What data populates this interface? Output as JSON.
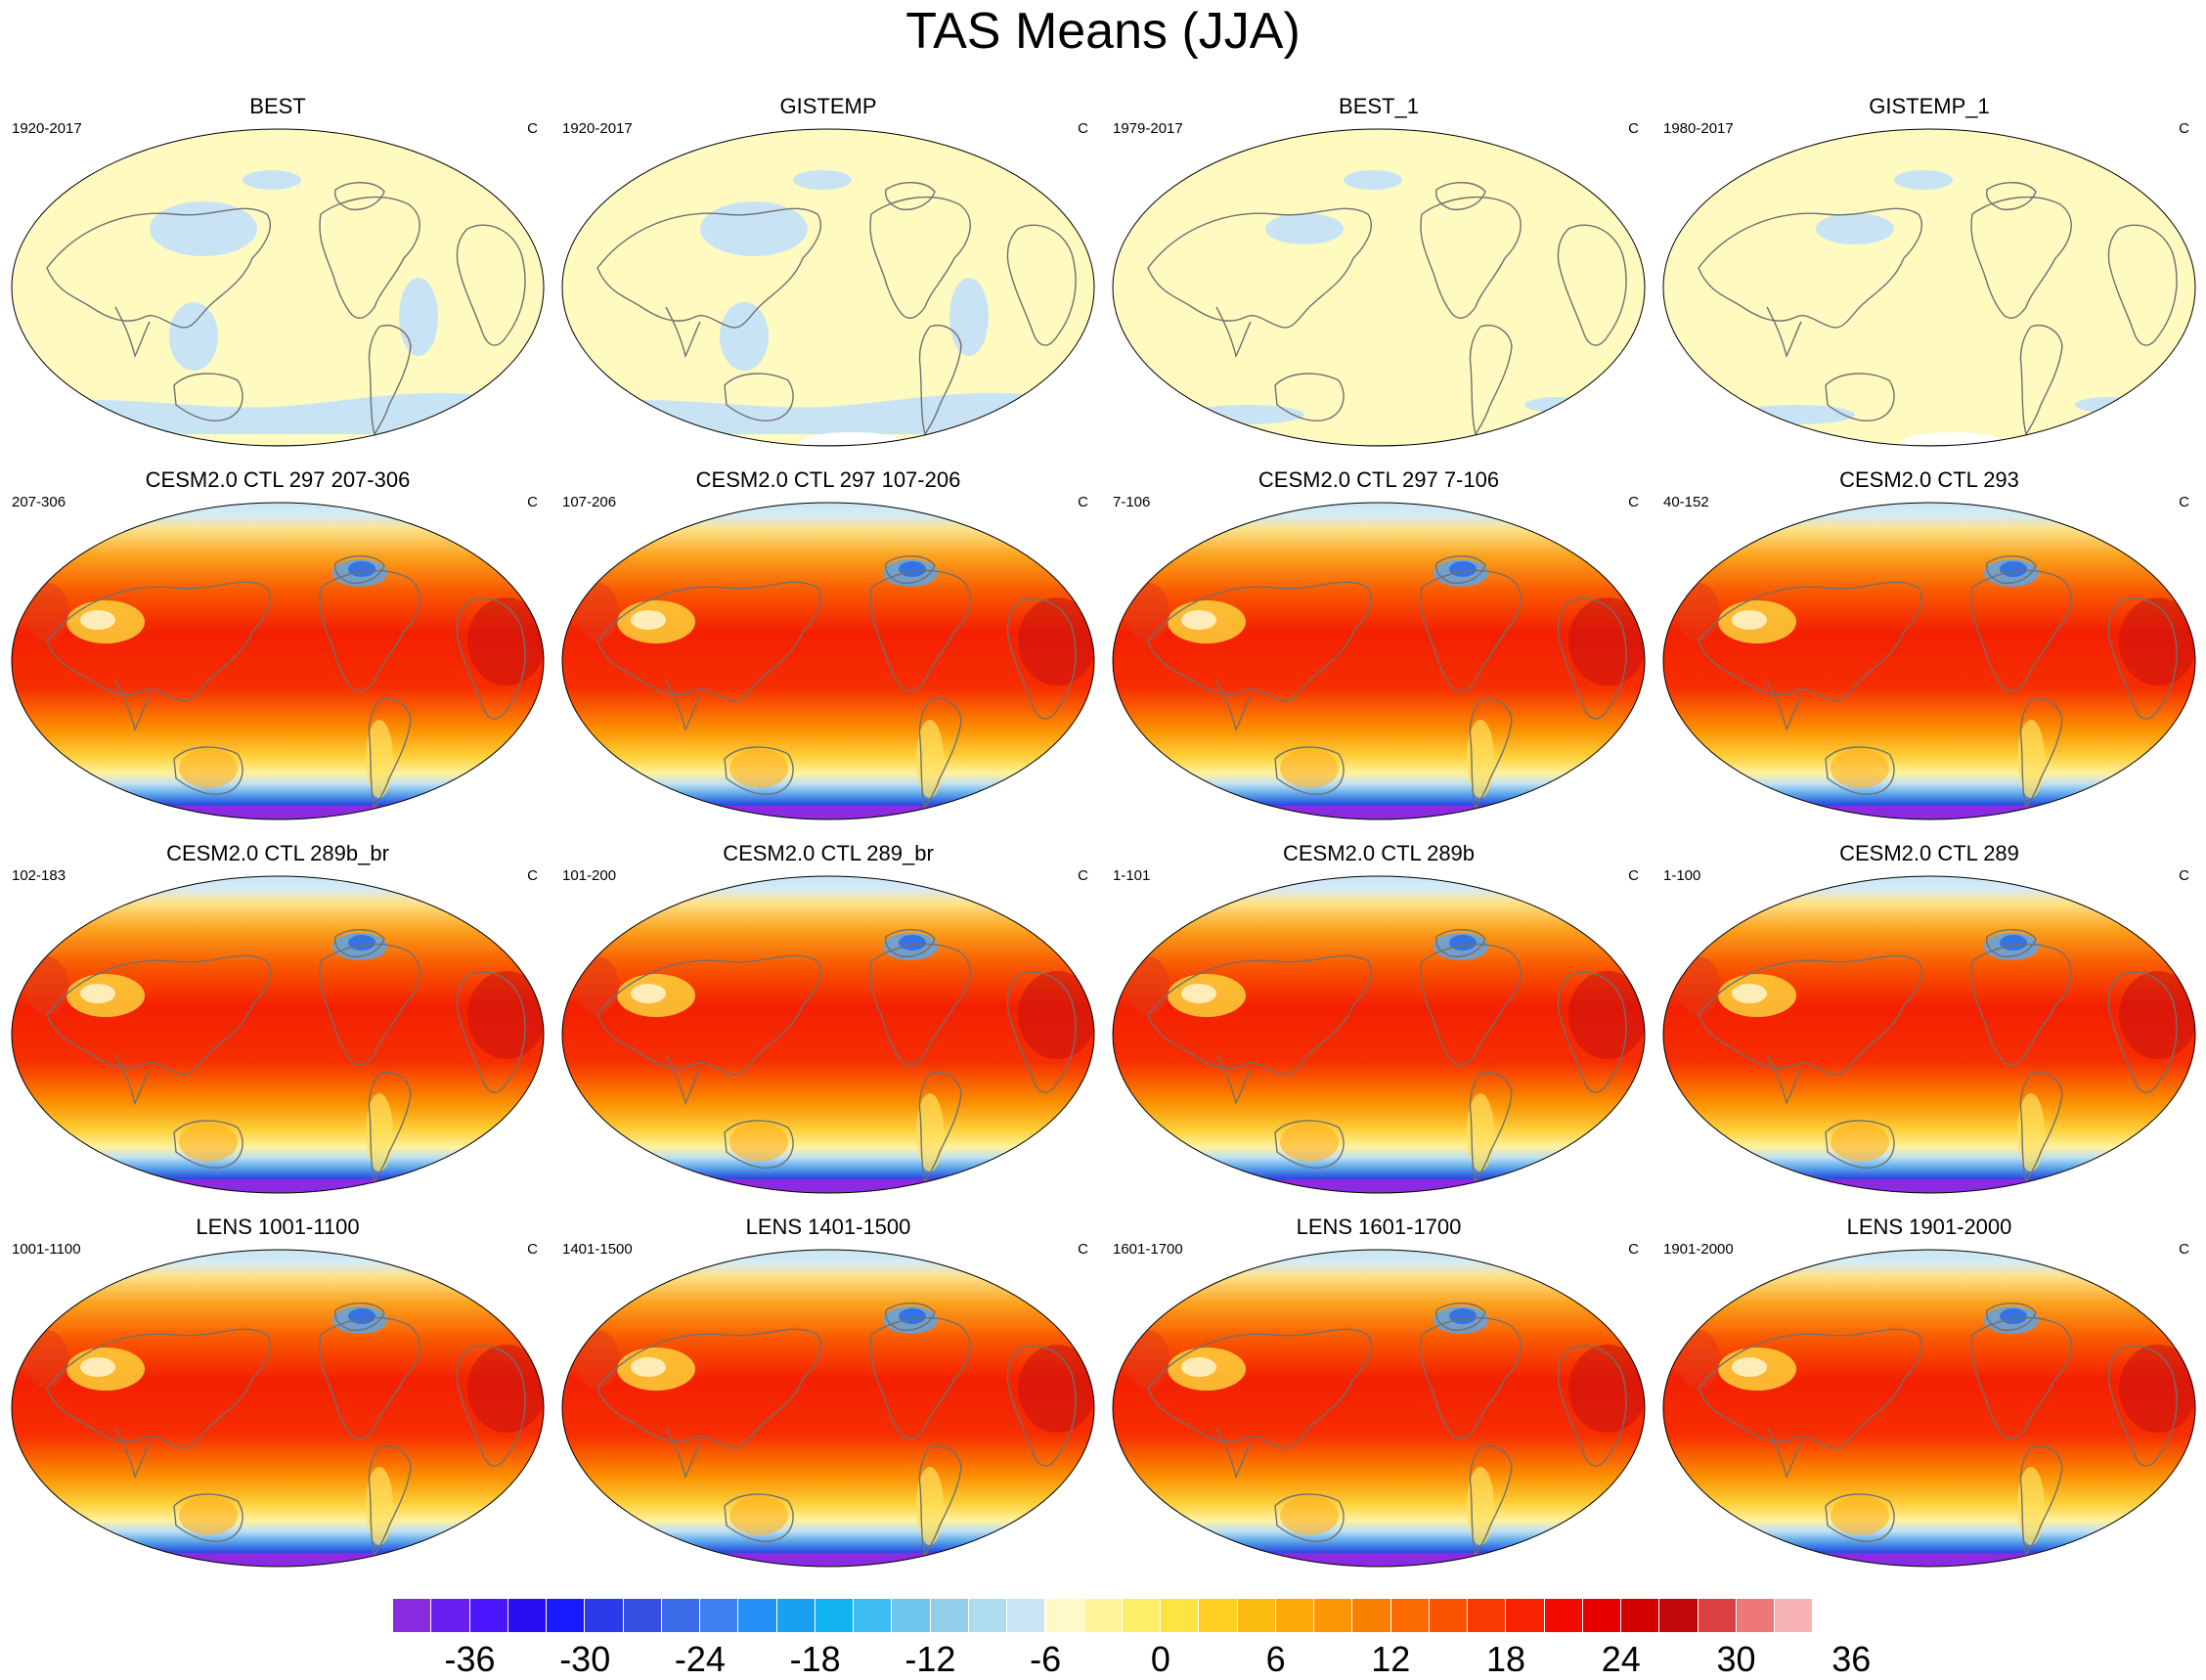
{
  "figure_title": "TAS Means (JJA)",
  "panels": [
    {
      "title": "BEST",
      "period": "1920-2017",
      "units": "C",
      "kind": "obs",
      "dense": true
    },
    {
      "title": "GISTEMP",
      "period": "1920-2017",
      "units": "C",
      "kind": "obs",
      "dense": true,
      "missing": true
    },
    {
      "title": "BEST_1",
      "period": "1979-2017",
      "units": "C",
      "kind": "obs",
      "dense": false
    },
    {
      "title": "GISTEMP_1",
      "period": "1980-2017",
      "units": "C",
      "kind": "obs",
      "dense": false,
      "missing": true
    },
    {
      "title": "CESM2.0 CTL 297 207-306",
      "period": "207-306",
      "units": "C",
      "kind": "model"
    },
    {
      "title": "CESM2.0 CTL 297 107-206",
      "period": "107-206",
      "units": "C",
      "kind": "model"
    },
    {
      "title": "CESM2.0 CTL 297 7-106",
      "period": "7-106",
      "units": "C",
      "kind": "model"
    },
    {
      "title": "CESM2.0 CTL 293",
      "period": "40-152",
      "units": "C",
      "kind": "model"
    },
    {
      "title": "CESM2.0 CTL 289b_br",
      "period": "102-183",
      "units": "C",
      "kind": "model"
    },
    {
      "title": "CESM2.0 CTL 289_br",
      "period": "101-200",
      "units": "C",
      "kind": "model"
    },
    {
      "title": "CESM2.0 CTL 289b",
      "period": "1-101",
      "units": "C",
      "kind": "model"
    },
    {
      "title": "CESM2.0 CTL 289",
      "period": "1-100",
      "units": "C",
      "kind": "model"
    },
    {
      "title": "LENS 1001-1100",
      "period": "1001-1100",
      "units": "C",
      "kind": "model"
    },
    {
      "title": "LENS 1401-1500",
      "period": "1401-1500",
      "units": "C",
      "kind": "model"
    },
    {
      "title": "LENS 1601-1700",
      "period": "1601-1700",
      "units": "C",
      "kind": "model"
    },
    {
      "title": "LENS 1901-2000",
      "period": "1901-2000",
      "units": "C",
      "kind": "model"
    }
  ],
  "colorbar": {
    "colors": [
      "#8a2be2",
      "#6a1ef0",
      "#4b17ff",
      "#2a0df5",
      "#1a1aff",
      "#2a3ae8",
      "#3550e0",
      "#3b6ae8",
      "#3f80f0",
      "#2590f5",
      "#1aa0f0",
      "#12b4f0",
      "#3cbcf0",
      "#6ec6f0",
      "#92cdea",
      "#b0dcef",
      "#c8e6f4",
      "#fffac8",
      "#fff59a",
      "#feef6a",
      "#fde440",
      "#fdd020",
      "#fcbd10",
      "#fcaa0a",
      "#fb9606",
      "#fa8000",
      "#fa6a00",
      "#f95400",
      "#f83a00",
      "#f82200",
      "#f40a00",
      "#e60000",
      "#d40000",
      "#c00808",
      "#dc4040",
      "#ee7878",
      "#f8b4b4"
    ],
    "ticks": [
      "-36",
      "-30",
      "-24",
      "-18",
      "-12",
      "-6",
      "0",
      "6",
      "12",
      "18",
      "24",
      "30",
      "36"
    ],
    "tick_positions": [
      2,
      5,
      8,
      11,
      14,
      17,
      20,
      23,
      26,
      29,
      32,
      35,
      38
    ]
  }
}
